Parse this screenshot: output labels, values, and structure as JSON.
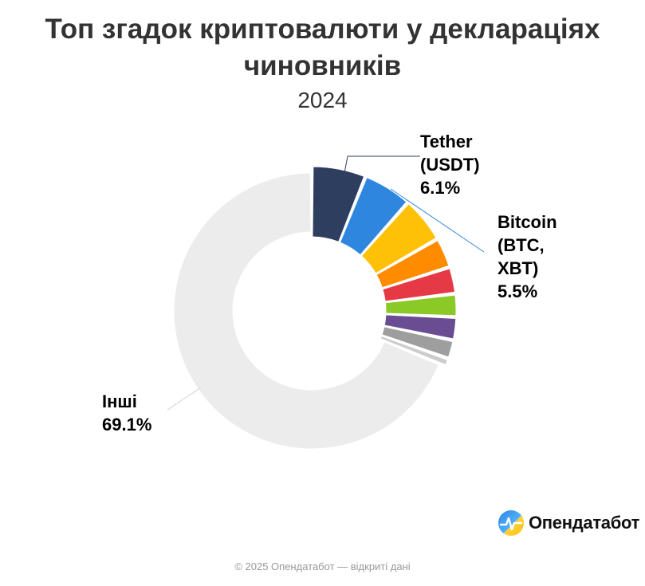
{
  "title": "Топ згадок криптовалюти у деклараціях чиновників",
  "subtitle": "2024",
  "chart_data": {
    "type": "pie",
    "variant": "donut",
    "title": "Топ згадок криптовалюти у деклараціях чиновників",
    "subtitle": "2024",
    "series": [
      {
        "name": "Tether (USDT)",
        "label_lines": [
          "Tether",
          "(USDT)",
          "6.1%"
        ],
        "value": 6.1,
        "color": "#2d3e5f",
        "labeled": true
      },
      {
        "name": "Bitcoin (BTC, XBT)",
        "label_lines": [
          "Bitcoin",
          "(BTC,",
          "XBT)",
          "5.5%"
        ],
        "value": 5.5,
        "color": "#2e86de",
        "labeled": true
      },
      {
        "name": "",
        "value": 5.2,
        "color": "#ffc107",
        "labeled": false
      },
      {
        "name": "",
        "value": 3.4,
        "color": "#ff8c00",
        "labeled": false
      },
      {
        "name": "",
        "value": 3.0,
        "color": "#e63946",
        "labeled": false
      },
      {
        "name": "",
        "value": 2.6,
        "color": "#8ac926",
        "labeled": false
      },
      {
        "name": "",
        "value": 2.6,
        "color": "#6a4c93",
        "labeled": false
      },
      {
        "name": "",
        "value": 2.1,
        "color": "#9e9e9e",
        "labeled": false
      },
      {
        "name": "",
        "value": 0.9,
        "color": "#cccccc",
        "labeled": false
      },
      {
        "name": "Інші",
        "label_lines": [
          "Інші",
          "69.1%"
        ],
        "value": 69.1,
        "color": "#ececec",
        "labeled": true
      }
    ]
  },
  "branding": {
    "logo_text": "Опендатабот"
  },
  "credits": "© 2025 Опендатабот — відкриті дані"
}
